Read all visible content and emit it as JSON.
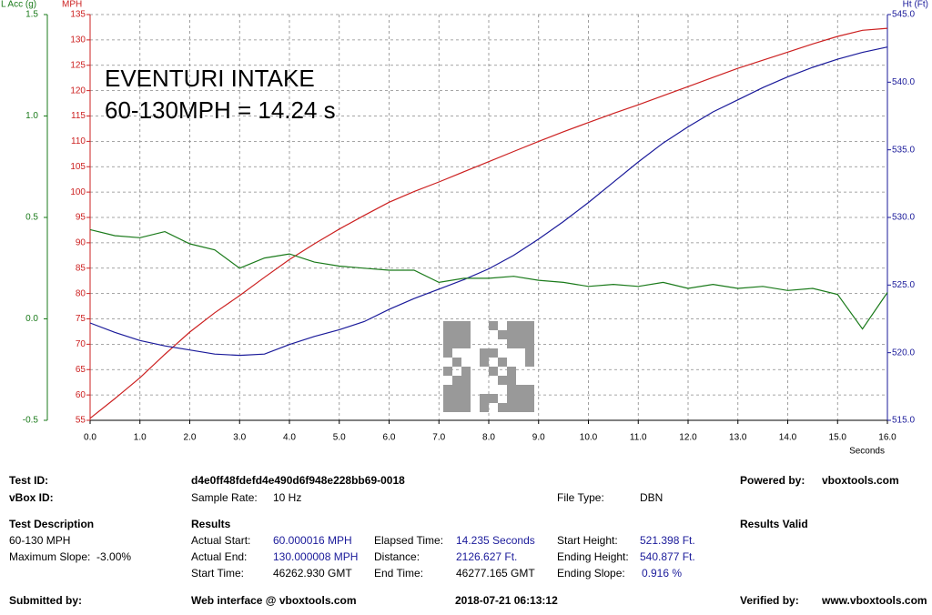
{
  "chart_data": {
    "type": "line",
    "annotations": [
      "EVENTURI INTAKE",
      "60-130MPH = 14.24 s"
    ],
    "xlabel": "Seconds",
    "ylabel": "MPH",
    "y2label": "Ht (Ft)",
    "y3label": "L Acc (g)",
    "x": [
      0,
      0.5,
      1,
      1.5,
      2,
      2.5,
      3,
      3.5,
      4,
      4.5,
      5,
      5.5,
      6,
      6.5,
      7,
      7.5,
      8,
      8.5,
      9,
      9.5,
      10,
      10.5,
      11,
      11.5,
      12,
      12.5,
      13,
      13.5,
      14,
      14.5,
      15,
      15.5,
      16
    ],
    "xlim": [
      0,
      16
    ],
    "xticks": [
      {
        "value": 0,
        "label": "0.0"
      },
      {
        "value": 1,
        "label": "1.0"
      },
      {
        "value": 2,
        "label": "2.0"
      },
      {
        "value": 3,
        "label": "3.0"
      },
      {
        "value": 4,
        "label": "4.0"
      },
      {
        "value": 5,
        "label": "5.0"
      },
      {
        "value": 6,
        "label": "6.0"
      },
      {
        "value": 7,
        "label": "7.0"
      },
      {
        "value": 8,
        "label": "8.0"
      },
      {
        "value": 9,
        "label": "9.0"
      },
      {
        "value": 10,
        "label": "10.0"
      },
      {
        "value": 11,
        "label": "11.0"
      },
      {
        "value": 12,
        "label": "12.0"
      },
      {
        "value": 13,
        "label": "13.0"
      },
      {
        "value": 14,
        "label": "14.0"
      },
      {
        "value": 15,
        "label": "15.0"
      },
      {
        "value": 16,
        "label": "16.0"
      }
    ],
    "ylim": [
      55,
      135
    ],
    "yticks": [
      55,
      60,
      65,
      70,
      75,
      80,
      85,
      90,
      95,
      100,
      105,
      110,
      115,
      120,
      125,
      130,
      135
    ],
    "y2lim": [
      515,
      545
    ],
    "y2ticks": [
      {
        "value": 515,
        "label": "515.0"
      },
      {
        "value": 520,
        "label": "520.0"
      },
      {
        "value": 525,
        "label": "525.0"
      },
      {
        "value": 530,
        "label": "530.0"
      },
      {
        "value": 535,
        "label": "535.0"
      },
      {
        "value": 540,
        "label": "540.0"
      },
      {
        "value": 545,
        "label": "545.0"
      }
    ],
    "y3lim": [
      -0.5,
      1.5
    ],
    "y3ticks": [
      -0.5,
      {
        "value": 0,
        "label": "0.0"
      },
      0.5,
      {
        "value": 1,
        "label": "1.0"
      },
      1.5
    ],
    "grid": true,
    "series": [
      {
        "name": "MPH",
        "color": "#cc2020",
        "axis": "y",
        "values": [
          55.4,
          59.3,
          63.4,
          68,
          72.4,
          76.2,
          79.6,
          83.2,
          86.7,
          89.8,
          92.7,
          95.4,
          98,
          100.1,
          102,
          104,
          106,
          108,
          110,
          111.9,
          113.7,
          115.5,
          117.2,
          119,
          120.8,
          122.6,
          124.4,
          126,
          127.6,
          129.2,
          130.7,
          131.9,
          132.3
        ]
      },
      {
        "name": "Ht (Ft)",
        "color": "#1a1a9a",
        "axis": "y2",
        "values": [
          522.2,
          521.5,
          520.9,
          520.5,
          520.2,
          519.9,
          519.8,
          519.9,
          520.6,
          521.2,
          521.7,
          522.3,
          523.2,
          524.0,
          524.7,
          525.4,
          526.2,
          527.2,
          528.4,
          529.7,
          531.1,
          532.6,
          534.1,
          535.5,
          536.7,
          537.8,
          538.7,
          539.6,
          540.4,
          541.1,
          541.7,
          542.2,
          542.6
        ]
      },
      {
        "name": "L Acc (g)",
        "color": "#1a7a1a",
        "axis": "y3",
        "values": [
          0.44,
          0.41,
          0.4,
          0.43,
          0.37,
          0.34,
          0.25,
          0.3,
          0.32,
          0.28,
          0.26,
          0.25,
          0.24,
          0.24,
          0.18,
          0.2,
          0.2,
          0.21,
          0.19,
          0.18,
          0.16,
          0.17,
          0.16,
          0.18,
          0.15,
          0.17,
          0.15,
          0.16,
          0.14,
          0.15,
          0.12,
          -0.05,
          0.13
        ]
      }
    ]
  },
  "report": {
    "rows": [
      [
        "Test ID:",
        "d4e0ff48fdefd4e490d6f948e228bb69-0018",
        "Powered by:",
        "vboxtools.com"
      ],
      [
        "vBox ID:",
        "Sample Rate:",
        "10 Hz",
        "File Type:",
        "DBN"
      ],
      [
        "Test Description",
        "Results",
        "Results Valid"
      ],
      [
        "60-130 MPH",
        "Actual Start:",
        "60.000016 MPH",
        "Elapsed Time:",
        "14.235 Seconds",
        "Start Height:",
        "521.398 Ft."
      ],
      [
        "Maximum Slope:  -3.00%",
        "Actual End:",
        "130.000008 MPH",
        "Distance:",
        "2126.627 Ft.",
        "Ending Height:",
        "540.877 Ft."
      ],
      [
        "Start Time:",
        "46262.930 GMT",
        "End Time:",
        "46277.165 GMT",
        "Ending Slope:",
        "0.916 %"
      ],
      [
        "Submitted by:",
        "Web interface @ vboxtools.com",
        "2018-07-21 06:13:12",
        "Verified by:",
        "www.vboxtools.com"
      ]
    ]
  }
}
